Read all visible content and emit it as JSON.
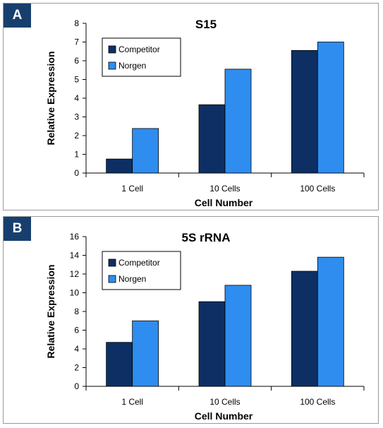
{
  "panels": [
    {
      "badge": "A"
    },
    {
      "badge": "B"
    }
  ],
  "colors": {
    "competitor": "#0d2f63",
    "norgen": "#2e8def",
    "badge": "#173f6e"
  },
  "chart_data": [
    {
      "type": "bar",
      "title": "S15",
      "xlabel": "Cell Number",
      "ylabel": "Relative Expression",
      "categories": [
        "1 Cell",
        "10 Cells",
        "100 Cells"
      ],
      "ylim": [
        0,
        8
      ],
      "yticks": [
        0,
        1,
        2,
        3,
        4,
        5,
        6,
        7,
        8
      ],
      "grid": false,
      "legend": "top-left",
      "series": [
        {
          "name": "Competitor",
          "values": [
            0.75,
            3.65,
            6.55
          ]
        },
        {
          "name": "Norgen",
          "values": [
            2.38,
            5.55,
            7.0
          ]
        }
      ]
    },
    {
      "type": "bar",
      "title": "5S rRNA",
      "xlabel": "Cell Number",
      "ylabel": "Relative Expression",
      "categories": [
        "1 Cell",
        "10 Cells",
        "100 Cells"
      ],
      "ylim": [
        0,
        16
      ],
      "yticks": [
        0,
        2,
        4,
        6,
        8,
        10,
        12,
        14,
        16
      ],
      "grid": false,
      "legend": "top-left",
      "series": [
        {
          "name": "Competitor",
          "values": [
            4.7,
            9.05,
            12.3
          ]
        },
        {
          "name": "Norgen",
          "values": [
            7.0,
            10.8,
            13.8
          ]
        }
      ]
    }
  ]
}
